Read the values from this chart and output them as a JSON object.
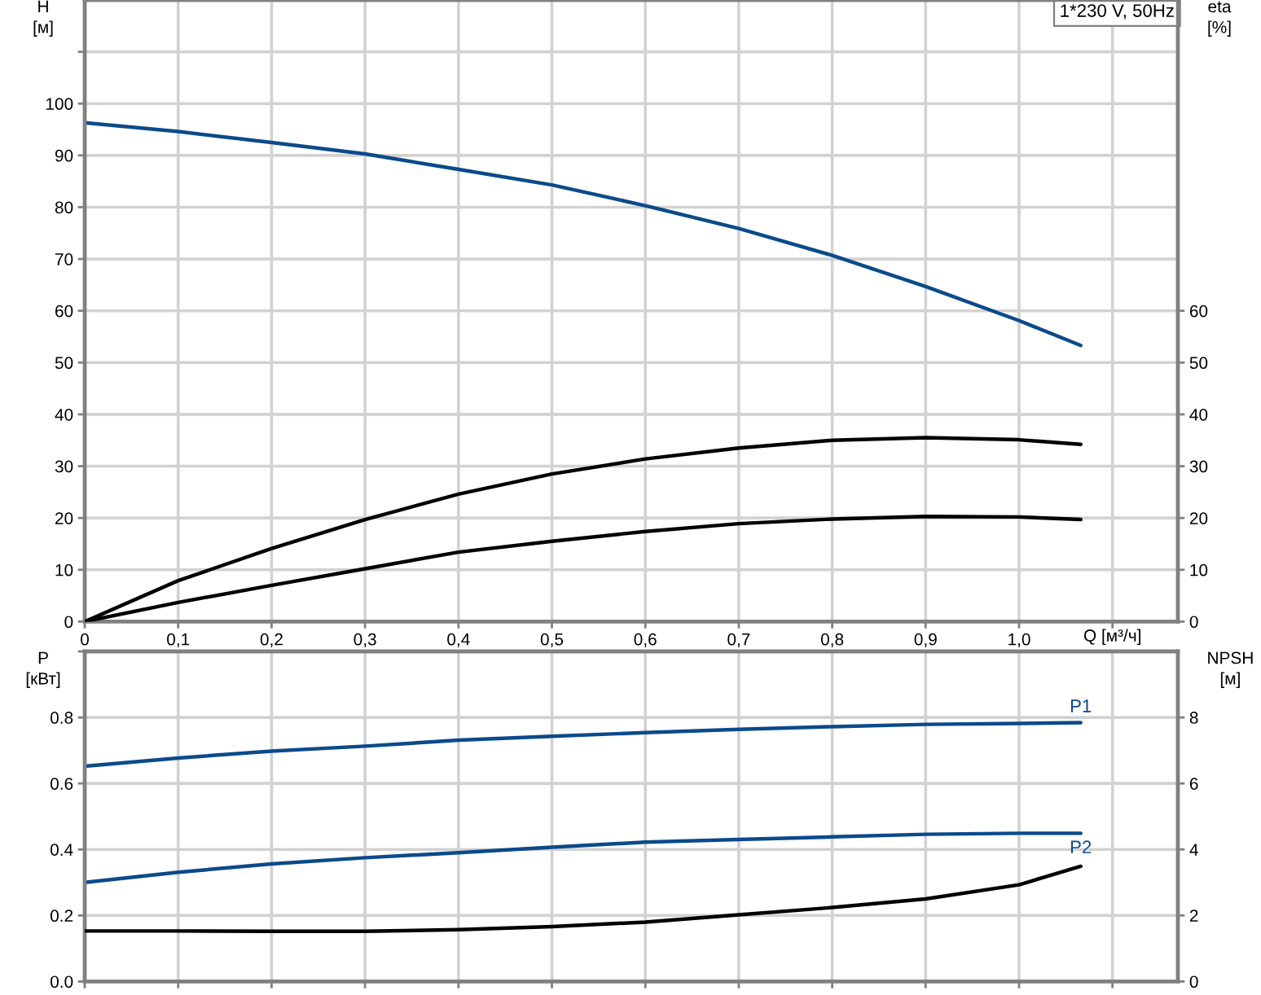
{
  "chart_data": [
    {
      "type": "line",
      "xlabel": "Q [м³/ч]",
      "ylabel": "H\n[м]",
      "y2label": "eta\n[%]",
      "annotations": [
        "1*230 V, 50Hz"
      ],
      "grid": true,
      "line_style": "solid",
      "x": [
        0,
        0.1,
        0.2,
        0.3,
        0.4,
        0.5,
        0.6,
        0.7,
        0.8,
        0.9,
        1.0,
        1.066
      ],
      "series": [
        {
          "color": "#0b4a8b",
          "values": [
            96.3,
            94.6,
            92.5,
            90.3,
            87.3,
            84.3,
            80.3,
            75.9,
            70.7,
            64.7,
            58.1,
            53.3
          ]
        },
        {
          "color": "#000000",
          "axis": "y2",
          "values": [
            0,
            7.9,
            14.1,
            19.7,
            24.6,
            28.5,
            31.4,
            33.5,
            35.0,
            35.5,
            35.1,
            34.2
          ]
        },
        {
          "color": "#000000",
          "axis": "y2",
          "values": [
            0,
            3.7,
            7.0,
            10.2,
            13.4,
            15.5,
            17.4,
            18.9,
            19.8,
            20.3,
            20.2,
            19.7
          ]
        }
      ],
      "xlim": [
        0,
        1.17
      ],
      "xticks": [
        0,
        {
          "value": 0.1,
          "label": "0,1"
        },
        {
          "value": 0.2,
          "label": "0,2"
        },
        {
          "value": 0.3,
          "label": "0,3"
        },
        {
          "value": 0.4,
          "label": "0,4"
        },
        {
          "value": 0.5,
          "label": "0,5"
        },
        {
          "value": 0.6,
          "label": "0,6"
        },
        {
          "value": 0.7,
          "label": "0,7"
        },
        {
          "value": 0.8,
          "label": "0,8"
        },
        {
          "value": 0.9,
          "label": "0,9"
        },
        {
          "value": 1.0,
          "label": "1,0"
        },
        {
          "value": 1.1,
          "label": null
        }
      ],
      "ylim": [
        0,
        120
      ],
      "yticks": [
        0,
        10,
        20,
        30,
        40,
        50,
        60,
        70,
        80,
        90,
        100,
        {
          "value": 110,
          "label": null
        }
      ],
      "y2lim": [
        0,
        120
      ],
      "y2ticks": [
        0,
        10,
        20,
        30,
        40,
        50,
        60
      ]
    },
    {
      "type": "line",
      "ylabel": "P\n[кВт]",
      "y2label": "NPSH\n[м]",
      "grid": true,
      "line_style": "solid",
      "tick_labels": "y",
      "x": [
        0,
        0.1,
        0.2,
        0.3,
        0.4,
        0.5,
        0.6,
        0.7,
        0.8,
        0.9,
        1.0,
        1.066
      ],
      "series": [
        {
          "name": "P1",
          "color": "#0b4a8b",
          "values": [
            0.652,
            0.677,
            0.698,
            0.713,
            0.731,
            0.743,
            0.754,
            0.764,
            0.772,
            0.779,
            0.782,
            0.784
          ]
        },
        {
          "name": "P2",
          "color": "#0b4a8b",
          "values": [
            0.3,
            0.331,
            0.356,
            0.375,
            0.39,
            0.407,
            0.422,
            0.43,
            0.438,
            0.446,
            0.449,
            0.449
          ]
        },
        {
          "color": "#000000",
          "axis": "y2",
          "values": [
            1.53,
            1.53,
            1.52,
            1.52,
            1.57,
            1.66,
            1.8,
            2.02,
            2.24,
            2.5,
            2.93,
            3.49
          ]
        }
      ],
      "xlim": [
        0,
        1.17
      ],
      "xticks": [
        0,
        0.1,
        0.2,
        0.3,
        0.4,
        0.5,
        0.6,
        0.7,
        0.8,
        0.9,
        1.0,
        1.1
      ],
      "ylim": [
        0,
        1.0
      ],
      "yticks": [
        {
          "value": 0,
          "label": "0.0"
        },
        0.2,
        0.4,
        0.6,
        0.8,
        {
          "value": 1.0,
          "label": null
        }
      ],
      "y2lim": [
        0,
        10
      ],
      "y2ticks": [
        0,
        2,
        4,
        6,
        8
      ]
    }
  ]
}
